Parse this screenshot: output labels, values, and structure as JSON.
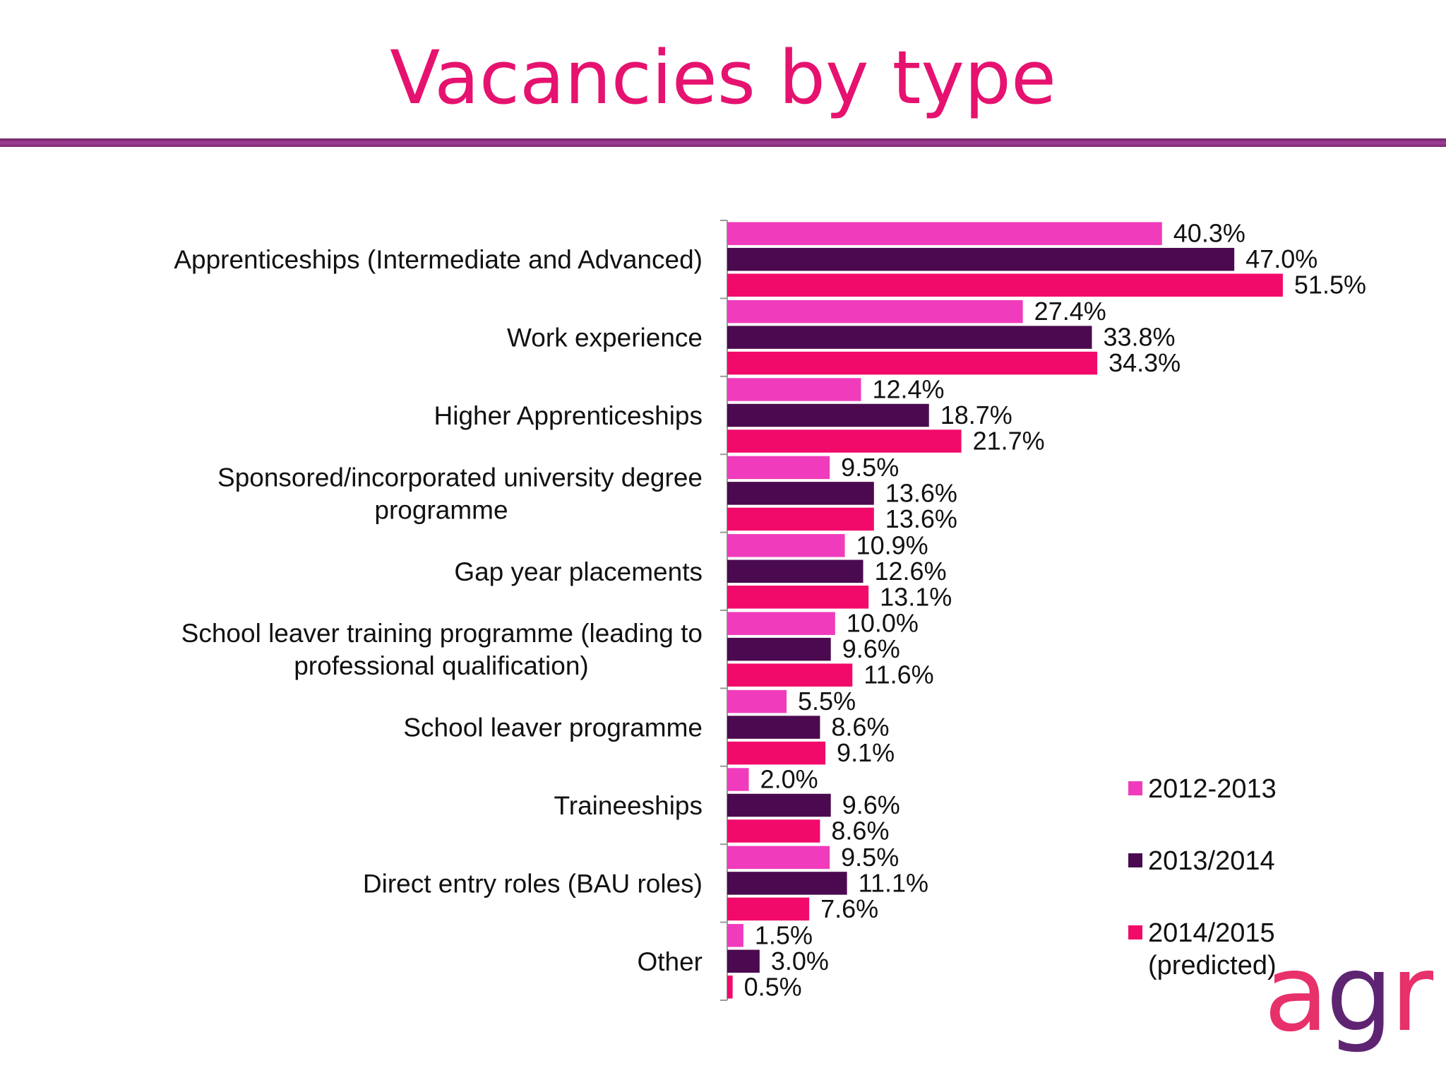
{
  "slide": {
    "title": "Vacancies by type",
    "logo_text": "agr"
  },
  "colors": {
    "title": "#e6126f",
    "rule": "#8e3483",
    "series": [
      "#f03cbc",
      "#4b0a4f",
      "#f20a6b"
    ],
    "logo_a": "#e8306a",
    "logo_g": "#5e2472",
    "logo_r": "#e8306a"
  },
  "legend": {
    "items": [
      {
        "label": "2012-2013",
        "color": "#f03cbc"
      },
      {
        "label": "2013/2014",
        "color": "#4b0a4f"
      },
      {
        "label": "2014/2015\n(predicted)",
        "color": "#f20a6b"
      }
    ]
  },
  "chart_data": {
    "type": "bar",
    "orientation": "horizontal",
    "title": "",
    "xlabel": "",
    "ylabel": "",
    "xlim": [
      0,
      60
    ],
    "grid": false,
    "legend_position": "right-bottom",
    "categories": [
      "Apprenticeships (Intermediate and Advanced)",
      "Work experience",
      "Higher Apprenticeships",
      "Sponsored/incorporated university degree\nprogramme",
      "Gap year placements",
      "School leaver training programme (leading to\nprofessional qualification)",
      "School leaver programme",
      "Traineeships",
      "Direct entry roles (BAU roles)",
      "Other"
    ],
    "series": [
      {
        "name": "2012-2013",
        "values": [
          40.3,
          27.4,
          12.4,
          9.5,
          10.9,
          10.0,
          5.5,
          2.0,
          9.5,
          1.5
        ],
        "labels": [
          "40.3%",
          "27.4%",
          "12.4%",
          "9.5%",
          "10.9%",
          "10.0%",
          "5.5%",
          "2.0%",
          "9.5%",
          "1.5%"
        ]
      },
      {
        "name": "2013/2014",
        "values": [
          47.0,
          33.8,
          18.7,
          13.6,
          12.6,
          9.6,
          8.6,
          9.6,
          11.1,
          3.0
        ],
        "labels": [
          "47.0%",
          "33.8%",
          "18.7%",
          "13.6%",
          "12.6%",
          "9.6%",
          "8.6%",
          "9.6%",
          "11.1%",
          "3.0%"
        ]
      },
      {
        "name": "2014/2015 (predicted)",
        "values": [
          51.5,
          34.3,
          21.7,
          13.6,
          13.1,
          11.6,
          9.1,
          8.6,
          7.6,
          0.5
        ],
        "labels": [
          "51.5%",
          "34.3%",
          "21.7%",
          "13.6%",
          "13.1%",
          "11.6%",
          "9.1%",
          "8.6%",
          "7.6%",
          "0.5%"
        ]
      }
    ]
  }
}
